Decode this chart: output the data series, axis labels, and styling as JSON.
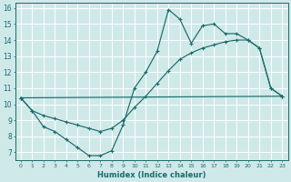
{
  "xlabel": "Humidex (Indice chaleur)",
  "xlim": [
    -0.5,
    23.5
  ],
  "ylim": [
    6.5,
    16.3
  ],
  "yticks": [
    7,
    8,
    9,
    10,
    11,
    12,
    13,
    14,
    15,
    16
  ],
  "xticks": [
    0,
    1,
    2,
    3,
    4,
    5,
    6,
    7,
    8,
    9,
    10,
    11,
    12,
    13,
    14,
    15,
    16,
    17,
    18,
    19,
    20,
    21,
    22,
    23
  ],
  "bg_color": "#cfe9e9",
  "grid_color": "#b0d4d4",
  "line_color": "#1a6b6b",
  "line1_x": [
    0,
    1,
    2,
    3,
    4,
    5,
    6,
    7,
    8,
    9,
    10,
    11,
    12,
    13,
    14,
    15,
    16,
    17,
    18,
    19,
    20,
    21,
    22,
    23
  ],
  "line1_y": [
    10.4,
    9.6,
    8.6,
    8.3,
    7.8,
    7.3,
    6.8,
    6.8,
    7.1,
    8.7,
    11.0,
    12.0,
    13.3,
    15.9,
    15.3,
    13.8,
    14.9,
    15.0,
    14.4,
    14.4,
    14.0,
    13.5,
    11.0,
    10.5
  ],
  "line2_x": [
    0,
    1,
    2,
    3,
    4,
    5,
    6,
    7,
    8,
    9,
    10,
    11,
    12,
    13,
    14,
    15,
    16,
    17,
    18,
    19,
    20,
    21,
    22,
    23
  ],
  "line2_y": [
    10.4,
    9.6,
    9.3,
    9.1,
    8.9,
    8.7,
    8.5,
    8.3,
    8.5,
    9.0,
    9.8,
    10.5,
    11.3,
    12.1,
    12.8,
    13.2,
    13.5,
    13.7,
    13.9,
    14.0,
    14.0,
    13.5,
    11.0,
    10.5
  ],
  "line3_x": [
    0,
    23
  ],
  "line3_y": [
    10.4,
    10.5
  ]
}
